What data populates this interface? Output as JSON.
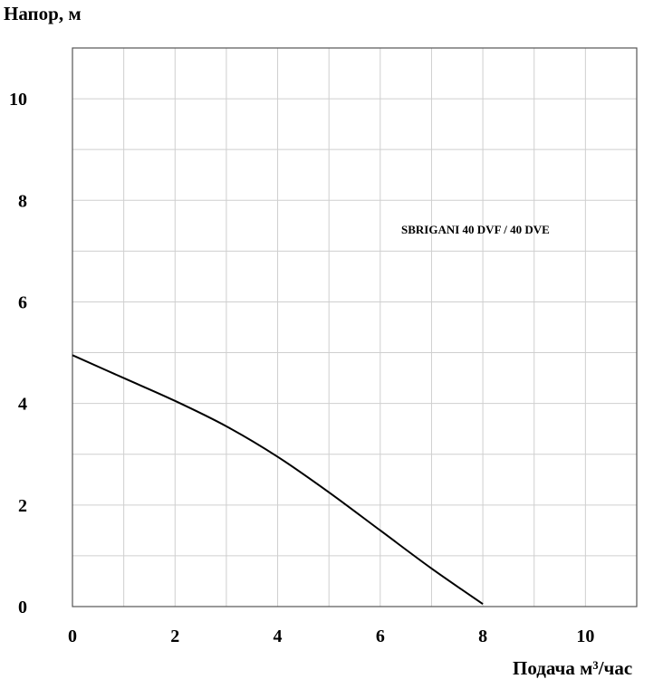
{
  "chart_data": {
    "type": "line",
    "ylabel": "Напор, м",
    "xlabel": "Подача  м³/час",
    "xlim": [
      0,
      11
    ],
    "ylim": [
      0,
      11
    ],
    "x_grid_step": 1,
    "y_grid_step": 1,
    "grid": true,
    "x_ticks": [
      0,
      2,
      4,
      6,
      8,
      10
    ],
    "y_ticks": [
      0,
      2,
      4,
      6,
      8,
      10
    ],
    "series": [
      {
        "name": "SBRIGANI 40 DVF / 40 DVE",
        "color": "#000000",
        "x": [
          0,
          1,
          2,
          3,
          4,
          5,
          6,
          7,
          8
        ],
        "y": [
          4.95,
          4.5,
          4.05,
          3.55,
          2.95,
          2.25,
          1.5,
          0.75,
          0.05
        ]
      }
    ]
  },
  "colors": {
    "grid": "#cfcfcf",
    "frame": "#555555",
    "line": "#000000"
  }
}
